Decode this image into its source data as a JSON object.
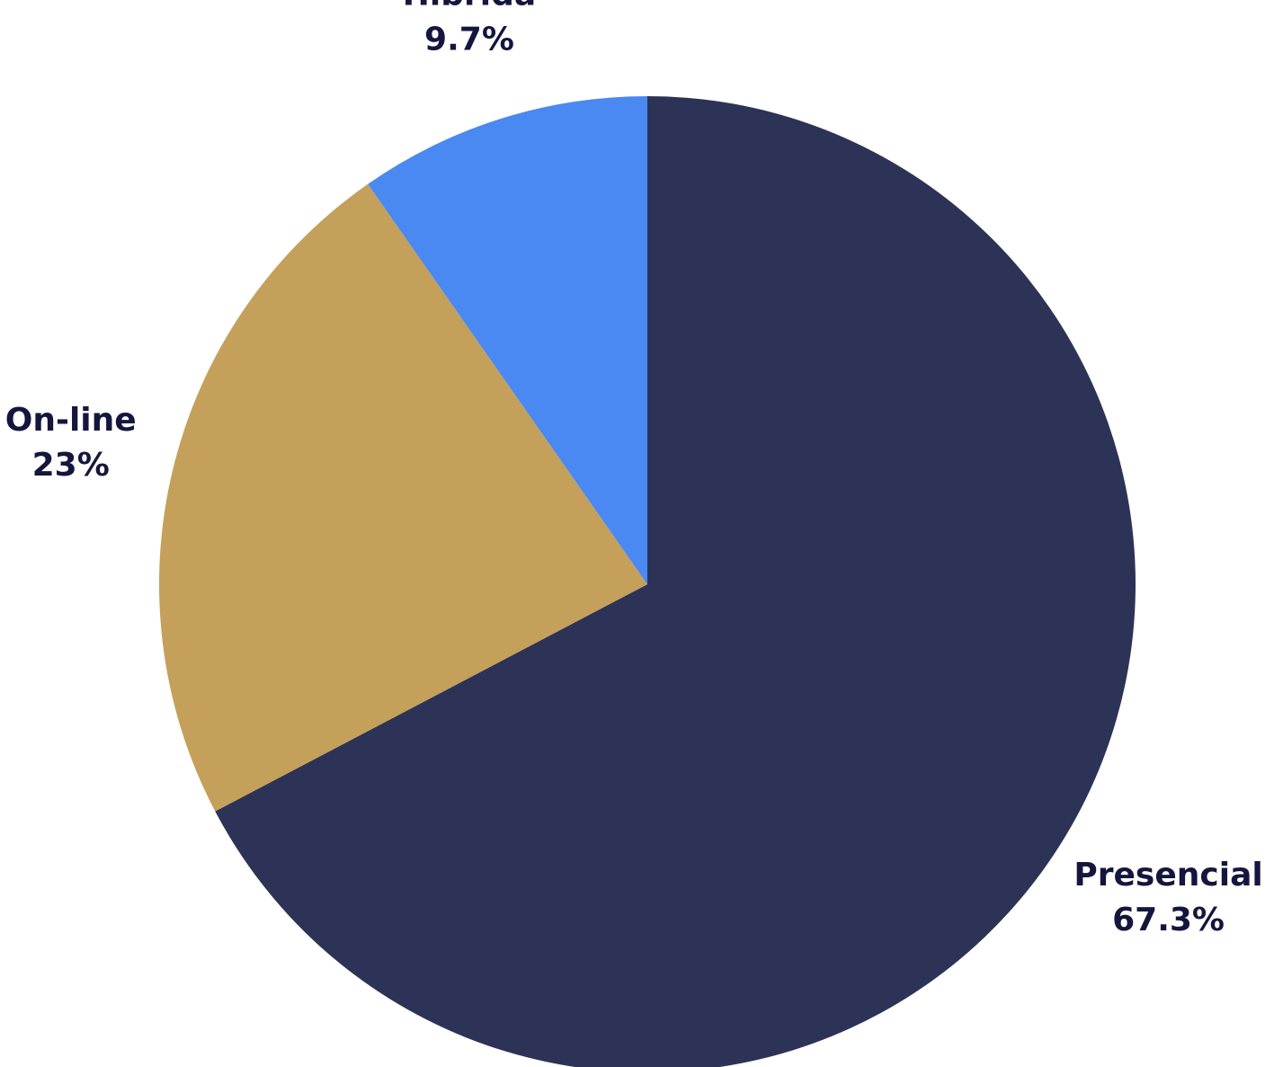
{
  "chart_data": {
    "type": "pie",
    "categories": [
      "Presencial",
      "On-line",
      "Híbrida"
    ],
    "values": [
      67.3,
      23,
      9.7
    ],
    "value_labels": [
      "67.3%",
      "23%",
      "9.7%"
    ],
    "colors": [
      "#2c3356",
      "#c4a05a",
      "#4a88f2"
    ]
  }
}
